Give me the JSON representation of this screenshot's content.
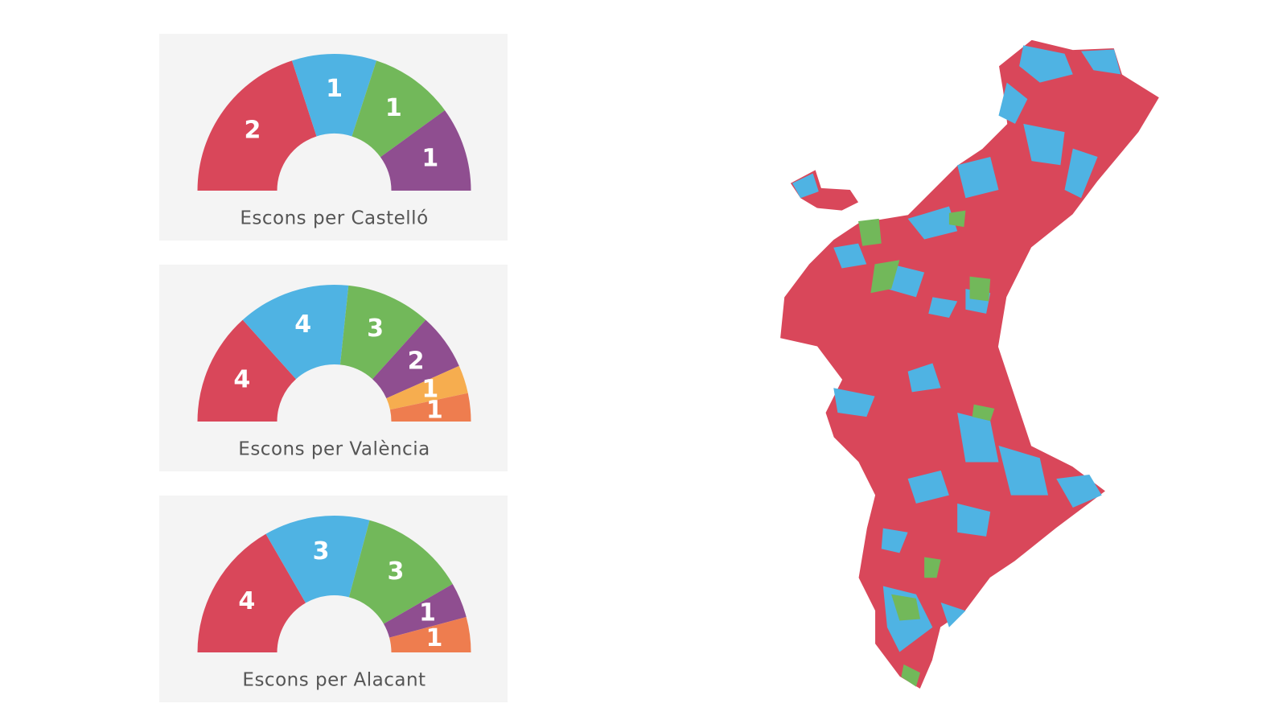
{
  "chart_data": [
    {
      "type": "semicircle",
      "title": "Escons per Castelló",
      "values": [
        2,
        1,
        1,
        1
      ],
      "colors": [
        "#d9475a",
        "#4fb3e3",
        "#72b85a",
        "#8f4e90"
      ]
    },
    {
      "type": "semicircle",
      "title": "Escons per València",
      "values": [
        4,
        4,
        3,
        2,
        1,
        1
      ],
      "colors": [
        "#d9475a",
        "#4fb3e3",
        "#72b85a",
        "#8f4e90",
        "#f6ad4f",
        "#ee7d4f"
      ]
    },
    {
      "type": "semicircle",
      "title": "Escons per Alacant",
      "values": [
        4,
        3,
        3,
        1,
        1
      ],
      "colors": [
        "#d9475a",
        "#4fb3e3",
        "#72b85a",
        "#8f4e90",
        "#ee7d4f"
      ]
    }
  ]
}
